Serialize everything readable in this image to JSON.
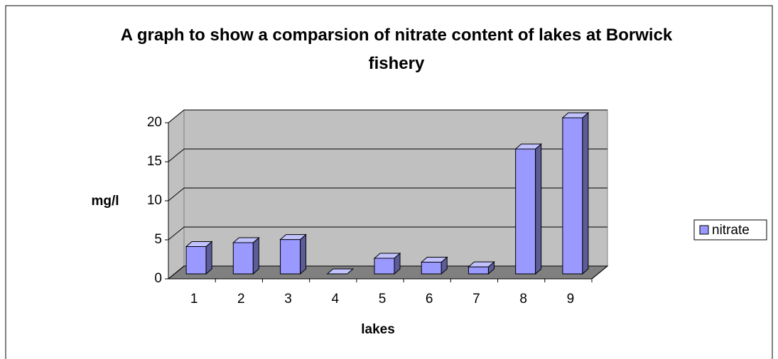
{
  "chart_data": {
    "type": "bar",
    "title": "A graph to show a comparsion of nitrate content of lakes at Borwick fishery",
    "xlabel": "lakes",
    "ylabel": "mg/l",
    "categories": [
      "1",
      "2",
      "3",
      "4",
      "5",
      "6",
      "7",
      "8",
      "9"
    ],
    "series": [
      {
        "name": "nitrate",
        "color": "#9999ff",
        "values": [
          3.5,
          4,
          4.4,
          0,
          2,
          1.5,
          0.9,
          16,
          20
        ]
      }
    ],
    "ylim": [
      0,
      20
    ],
    "yticks": [
      0,
      5,
      10,
      15,
      20
    ],
    "grid": true,
    "legend": "right"
  }
}
